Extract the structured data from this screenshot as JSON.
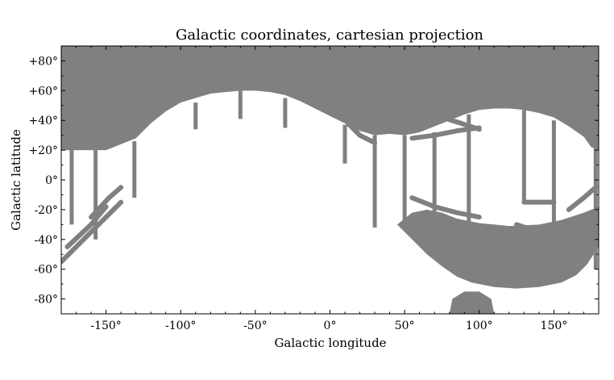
{
  "chart_data": {
    "type": "scatter",
    "title": "Galactic coordinates, cartesian projection",
    "xlabel": "Galactic longitude",
    "ylabel": "Galactic latitude",
    "xlim": [
      -180,
      180
    ],
    "ylim": [
      -90,
      90
    ],
    "xticks": [
      -150,
      -100,
      -50,
      0,
      50,
      100,
      150
    ],
    "xtick_labels": [
      "-150°",
      "-100°",
      "-50°",
      "0°",
      "50°",
      "100°",
      "150°"
    ],
    "yticks": [
      80,
      60,
      40,
      20,
      0,
      -20,
      -40,
      -60,
      -80
    ],
    "ytick_labels": [
      "+80°",
      "+60°",
      "+40°",
      "+20°",
      "0°",
      "-20°",
      "-40°",
      "-60°",
      "-80°"
    ],
    "grid": false,
    "marker_color": "#808080",
    "regions": {
      "north_cap_boundary": [
        [
          -180,
          20
        ],
        [
          -165,
          20
        ],
        [
          -150,
          20
        ],
        [
          -140,
          24
        ],
        [
          -130,
          28
        ],
        [
          -120,
          38
        ],
        [
          -110,
          46
        ],
        [
          -100,
          52
        ],
        [
          -90,
          55
        ],
        [
          -80,
          58
        ],
        [
          -70,
          59
        ],
        [
          -60,
          60
        ],
        [
          -50,
          60
        ],
        [
          -40,
          59
        ],
        [
          -30,
          57
        ],
        [
          -20,
          53
        ],
        [
          -10,
          48
        ],
        [
          0,
          43
        ],
        [
          10,
          38
        ],
        [
          20,
          33
        ],
        [
          30,
          30
        ],
        [
          40,
          31
        ],
        [
          50,
          30
        ],
        [
          60,
          32
        ],
        [
          70,
          36
        ],
        [
          80,
          40
        ],
        [
          90,
          44
        ],
        [
          100,
          47
        ],
        [
          110,
          48
        ],
        [
          120,
          48
        ],
        [
          130,
          47
        ],
        [
          140,
          45
        ],
        [
          150,
          42
        ],
        [
          160,
          36
        ],
        [
          170,
          29
        ],
        [
          175,
          22
        ],
        [
          180,
          20
        ]
      ],
      "south_cap_boundary": [
        [
          45,
          -30
        ],
        [
          55,
          -40
        ],
        [
          65,
          -50
        ],
        [
          75,
          -58
        ],
        [
          85,
          -65
        ],
        [
          95,
          -69
        ],
        [
          110,
          -72
        ],
        [
          125,
          -73
        ],
        [
          140,
          -72
        ],
        [
          155,
          -69
        ],
        [
          165,
          -64
        ],
        [
          172,
          -57
        ],
        [
          178,
          -48
        ],
        [
          180,
          -45
        ],
        [
          180,
          -18
        ],
        [
          170,
          -22
        ],
        [
          155,
          -27
        ],
        [
          140,
          -30
        ],
        [
          120,
          -31
        ],
        [
          100,
          -29
        ],
        [
          85,
          -26
        ],
        [
          75,
          -22
        ],
        [
          65,
          -20
        ],
        [
          55,
          -22
        ]
      ],
      "south_pole_patch": [
        [
          80,
          -90
        ],
        [
          82,
          -80
        ],
        [
          90,
          -75
        ],
        [
          100,
          -75
        ],
        [
          108,
          -80
        ],
        [
          110,
          -90
        ]
      ],
      "vertical_strips": [
        {
          "lon": -173,
          "lat": [
            -30,
            20
          ]
        },
        {
          "lon": -157,
          "lat": [
            -40,
            20
          ]
        },
        {
          "lon": -131,
          "lat": [
            -12,
            26
          ]
        },
        {
          "lon": -90,
          "lat": [
            34,
            52
          ]
        },
        {
          "lon": -60,
          "lat": [
            41,
            60
          ]
        },
        {
          "lon": -30,
          "lat": [
            35,
            55
          ]
        },
        {
          "lon": 10,
          "lat": [
            11,
            37
          ]
        },
        {
          "lon": 30,
          "lat": [
            -32,
            30
          ]
        },
        {
          "lon": 50,
          "lat": [
            -32,
            30
          ]
        },
        {
          "lon": 70,
          "lat": [
            -25,
            32
          ]
        },
        {
          "lon": 93,
          "lat": [
            -30,
            44
          ]
        },
        {
          "lon": 130,
          "lat": [
            -15,
            47
          ]
        },
        {
          "lon": 150,
          "lat": [
            -45,
            40
          ]
        },
        {
          "lon": 178,
          "lat": [
            -60,
            22
          ]
        }
      ],
      "diagonal_bands": [
        [
          [
            -180,
            -55
          ],
          [
            -165,
            -40
          ],
          [
            -150,
            -25
          ],
          [
            -140,
            -15
          ]
        ],
        [
          [
            -176,
            -45
          ],
          [
            -160,
            -30
          ],
          [
            -150,
            -18
          ]
        ],
        [
          [
            -160,
            -25
          ],
          [
            -148,
            -12
          ],
          [
            -140,
            -5
          ]
        ],
        [
          [
            12,
            38
          ],
          [
            20,
            30
          ],
          [
            30,
            25
          ]
        ],
        [
          [
            55,
            28
          ],
          [
            70,
            30
          ],
          [
            85,
            33
          ],
          [
            100,
            35
          ]
        ],
        [
          [
            75,
            42
          ],
          [
            88,
            38
          ],
          [
            100,
            34
          ]
        ],
        [
          [
            130,
            -15
          ],
          [
            150,
            -15
          ]
        ],
        [
          [
            125,
            -30
          ],
          [
            140,
            -35
          ],
          [
            155,
            -38
          ],
          [
            170,
            -42
          ],
          [
            180,
            -43
          ]
        ],
        [
          [
            55,
            -12
          ],
          [
            70,
            -18
          ],
          [
            85,
            -22
          ],
          [
            100,
            -25
          ]
        ],
        [
          [
            160,
            -20
          ],
          [
            170,
            -12
          ],
          [
            178,
            -5
          ]
        ]
      ]
    }
  }
}
